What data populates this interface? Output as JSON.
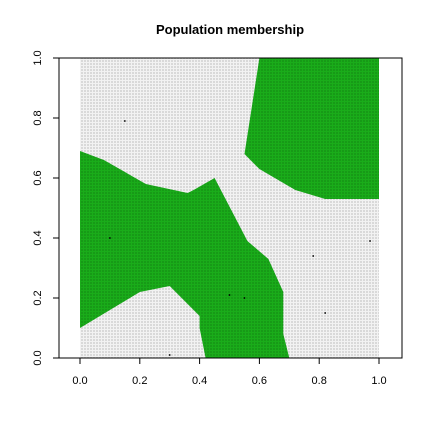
{
  "chart_data": {
    "type": "heatmap",
    "title": "Population membership",
    "xlabel": "",
    "ylabel": "",
    "xlim": [
      -0.07,
      1.07
    ],
    "ylim": [
      0.0,
      1.0
    ],
    "x_ticks": [
      0.0,
      0.2,
      0.4,
      0.6,
      0.8,
      1.0
    ],
    "y_ticks": [
      0.0,
      0.2,
      0.4,
      0.6,
      0.8,
      1.0
    ],
    "x_tick_labels": [
      "0.0",
      "0.2",
      "0.4",
      "0.6",
      "0.8",
      "1.0"
    ],
    "y_tick_labels": [
      "0.0",
      "0.2",
      "0.4",
      "0.6",
      "0.8",
      "1.0"
    ],
    "grid": false,
    "legend": "none",
    "colors": {
      "background_class": "#f2f2f2",
      "membership_class": "#1aac1a",
      "membership_class_alt": "#11a511",
      "points": "#000000"
    },
    "regions": [
      {
        "class": "membership",
        "polygon": [
          [
            0.0,
            0.69
          ],
          [
            0.08,
            0.66
          ],
          [
            0.22,
            0.58
          ],
          [
            0.36,
            0.55
          ],
          [
            0.38,
            0.56
          ],
          [
            0.45,
            0.6
          ],
          [
            0.56,
            0.39
          ],
          [
            0.63,
            0.33
          ],
          [
            0.68,
            0.22
          ],
          [
            0.68,
            0.08
          ],
          [
            0.7,
            0.0
          ],
          [
            0.42,
            0.0
          ],
          [
            0.4,
            0.1
          ],
          [
            0.4,
            0.14
          ],
          [
            0.3,
            0.24
          ],
          [
            0.2,
            0.22
          ],
          [
            0.0,
            0.1
          ]
        ]
      },
      {
        "class": "membership",
        "polygon": [
          [
            0.6,
            1.0
          ],
          [
            1.0,
            1.0
          ],
          [
            1.0,
            0.53
          ],
          [
            0.82,
            0.53
          ],
          [
            0.72,
            0.56
          ],
          [
            0.6,
            0.63
          ],
          [
            0.55,
            0.68
          ]
        ]
      }
    ],
    "points": [
      {
        "x": 0.15,
        "y": 0.79
      },
      {
        "x": 0.1,
        "y": 0.4
      },
      {
        "x": 0.5,
        "y": 0.21
      },
      {
        "x": 0.55,
        "y": 0.2
      },
      {
        "x": 0.3,
        "y": 0.01
      },
      {
        "x": 0.78,
        "y": 0.34
      },
      {
        "x": 0.82,
        "y": 0.15
      },
      {
        "x": 0.97,
        "y": 0.39
      }
    ]
  }
}
